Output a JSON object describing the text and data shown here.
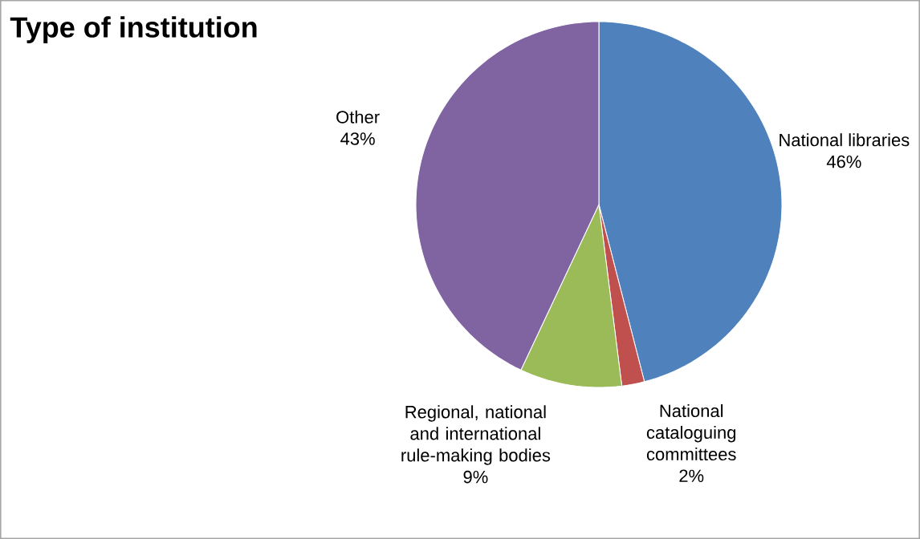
{
  "chart_data": {
    "type": "pie",
    "title": "Type of institution",
    "categories": [
      "National libraries",
      "National cataloguing committees",
      "Regional, national and international rule-making bodies",
      "Other"
    ],
    "values": [
      46,
      2,
      9,
      43
    ],
    "value_labels": [
      "46%",
      "2%",
      "9%",
      "43%"
    ],
    "colors": [
      "#4f81bd",
      "#c0504d",
      "#9bbb59",
      "#8064a2"
    ]
  }
}
